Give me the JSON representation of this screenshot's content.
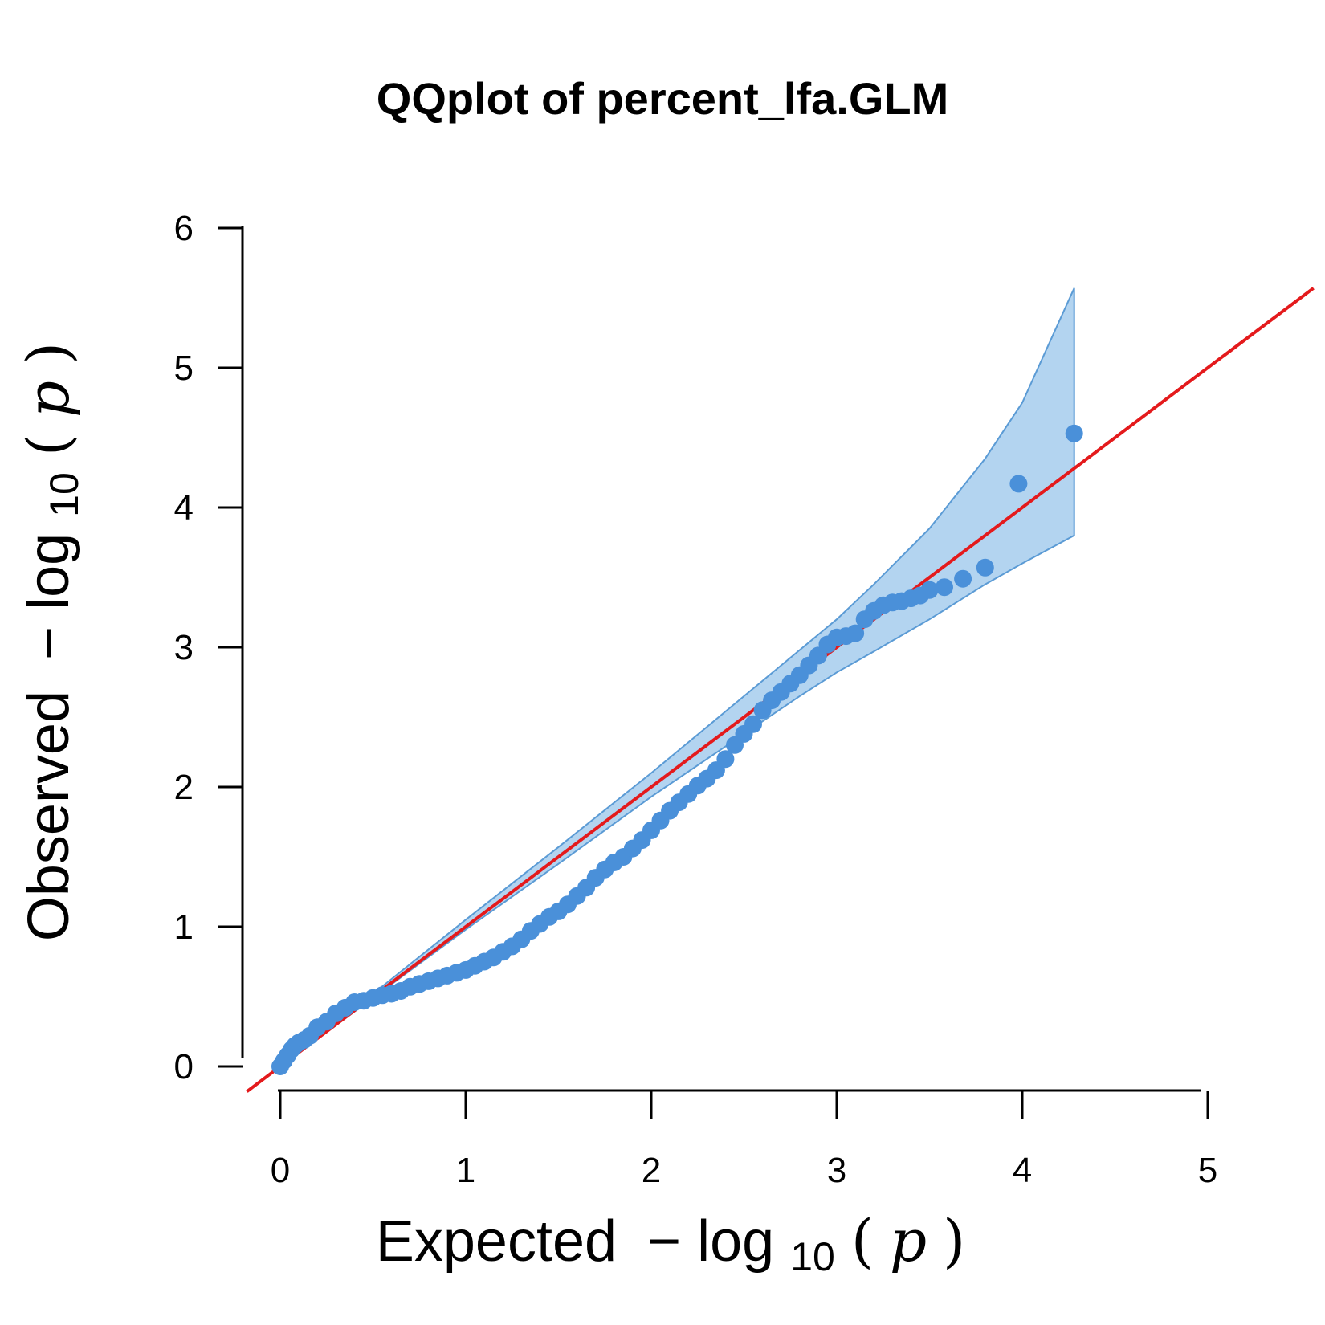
{
  "chart_data": {
    "type": "scatter",
    "title": "QQplot of percent_lfa.GLM",
    "xlabel": "Expected  −log10(p)",
    "ylabel": "Observed  −log10(p)",
    "axis_label_parts": {
      "x_word": "Expected",
      "y_word": "Observed",
      "minus": "−",
      "log": "log",
      "base": "10",
      "open_paren": "(",
      "p": "p",
      "close_paren": ")"
    },
    "xlim": [
      0,
      5
    ],
    "ylim": [
      0,
      6
    ],
    "x_ticks": [
      "0",
      "1",
      "2",
      "3",
      "4",
      "5"
    ],
    "y_ticks": [
      "0",
      "1",
      "2",
      "3",
      "4",
      "5",
      "6"
    ],
    "grid": false,
    "reference_line": {
      "name": "y = x",
      "color": "#e41a1c"
    },
    "point_color": "#4a90d9",
    "band_fill_color": "#b3d4f0",
    "band_edge_color": "#5b9bd5",
    "confidence_band": {
      "x": [
        0.0,
        0.5,
        1.0,
        1.5,
        2.0,
        2.5,
        2.8,
        3.0,
        3.2,
        3.5,
        3.8,
        4.0,
        4.28
      ],
      "upper": [
        0.0,
        0.52,
        1.05,
        1.57,
        2.1,
        2.65,
        2.98,
        3.2,
        3.45,
        3.85,
        4.35,
        4.75,
        5.57
      ],
      "lower": [
        0.0,
        0.49,
        0.98,
        1.45,
        1.93,
        2.38,
        2.65,
        2.82,
        2.97,
        3.2,
        3.45,
        3.6,
        3.8
      ]
    },
    "series": [
      {
        "values": [
          [
            0.0,
            0.0
          ],
          [
            0.02,
            0.04
          ],
          [
            0.04,
            0.08
          ],
          [
            0.06,
            0.12
          ],
          [
            0.08,
            0.15
          ],
          [
            0.1,
            0.17
          ],
          [
            0.13,
            0.19
          ],
          [
            0.16,
            0.22
          ],
          [
            0.2,
            0.28
          ],
          [
            0.25,
            0.32
          ],
          [
            0.3,
            0.38
          ],
          [
            0.35,
            0.42
          ],
          [
            0.4,
            0.46
          ],
          [
            0.45,
            0.47
          ],
          [
            0.5,
            0.49
          ],
          [
            0.55,
            0.51
          ],
          [
            0.6,
            0.52
          ],
          [
            0.65,
            0.54
          ],
          [
            0.7,
            0.57
          ],
          [
            0.75,
            0.59
          ],
          [
            0.8,
            0.61
          ],
          [
            0.85,
            0.63
          ],
          [
            0.9,
            0.65
          ],
          [
            0.95,
            0.67
          ],
          [
            1.0,
            0.69
          ],
          [
            1.05,
            0.72
          ],
          [
            1.1,
            0.75
          ],
          [
            1.15,
            0.78
          ],
          [
            1.2,
            0.82
          ],
          [
            1.25,
            0.86
          ],
          [
            1.3,
            0.91
          ],
          [
            1.35,
            0.97
          ],
          [
            1.4,
            1.02
          ],
          [
            1.45,
            1.07
          ],
          [
            1.5,
            1.11
          ],
          [
            1.55,
            1.16
          ],
          [
            1.6,
            1.22
          ],
          [
            1.65,
            1.28
          ],
          [
            1.7,
            1.35
          ],
          [
            1.75,
            1.41
          ],
          [
            1.8,
            1.46
          ],
          [
            1.85,
            1.5
          ],
          [
            1.9,
            1.56
          ],
          [
            1.95,
            1.62
          ],
          [
            2.0,
            1.69
          ],
          [
            2.05,
            1.76
          ],
          [
            2.1,
            1.83
          ],
          [
            2.15,
            1.89
          ],
          [
            2.2,
            1.95
          ],
          [
            2.25,
            2.01
          ],
          [
            2.3,
            2.06
          ],
          [
            2.35,
            2.12
          ],
          [
            2.4,
            2.2
          ],
          [
            2.45,
            2.3
          ],
          [
            2.5,
            2.38
          ],
          [
            2.55,
            2.45
          ],
          [
            2.6,
            2.55
          ],
          [
            2.65,
            2.62
          ],
          [
            2.7,
            2.68
          ],
          [
            2.75,
            2.74
          ],
          [
            2.8,
            2.8
          ],
          [
            2.85,
            2.87
          ],
          [
            2.9,
            2.94
          ],
          [
            2.95,
            3.02
          ],
          [
            3.0,
            3.07
          ],
          [
            3.05,
            3.08
          ],
          [
            3.1,
            3.1
          ],
          [
            3.15,
            3.2
          ],
          [
            3.2,
            3.26
          ],
          [
            3.25,
            3.3
          ],
          [
            3.3,
            3.32
          ],
          [
            3.35,
            3.33
          ],
          [
            3.4,
            3.35
          ],
          [
            3.45,
            3.37
          ],
          [
            3.5,
            3.41
          ],
          [
            3.58,
            3.43
          ],
          [
            3.68,
            3.49
          ],
          [
            3.8,
            3.57
          ],
          [
            3.98,
            4.17
          ],
          [
            4.28,
            4.53
          ]
        ]
      }
    ]
  }
}
